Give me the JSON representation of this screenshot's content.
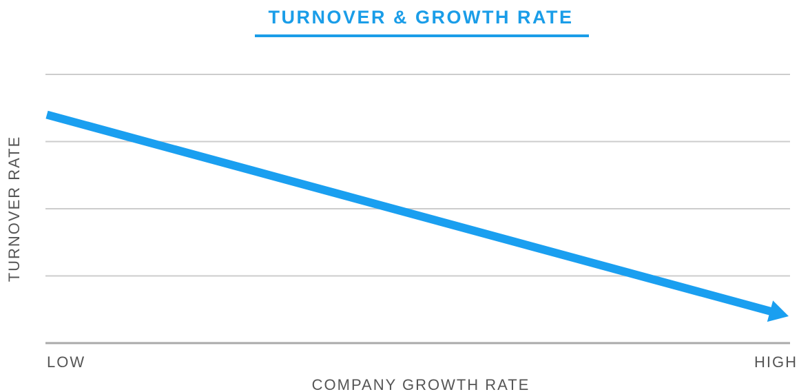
{
  "chart_data": {
    "type": "line",
    "title": "TURNOVER & GROWTH RATE",
    "x_label": "COMPANY GROWTH RATE",
    "y_label": "TURNOVER RATE",
    "x": [
      0,
      1
    ],
    "values": [
      3.4,
      0.4
    ],
    "color": "#1a9ff0",
    "xlim": [
      0,
      1
    ],
    "xticks": [
      {
        "value": 0,
        "label": "LOW"
      },
      {
        "value": 1,
        "label": "HIGH"
      }
    ],
    "ylim": [
      0,
      4
    ],
    "yticks": [
      0,
      1,
      2,
      3,
      4
    ],
    "grid": true
  }
}
